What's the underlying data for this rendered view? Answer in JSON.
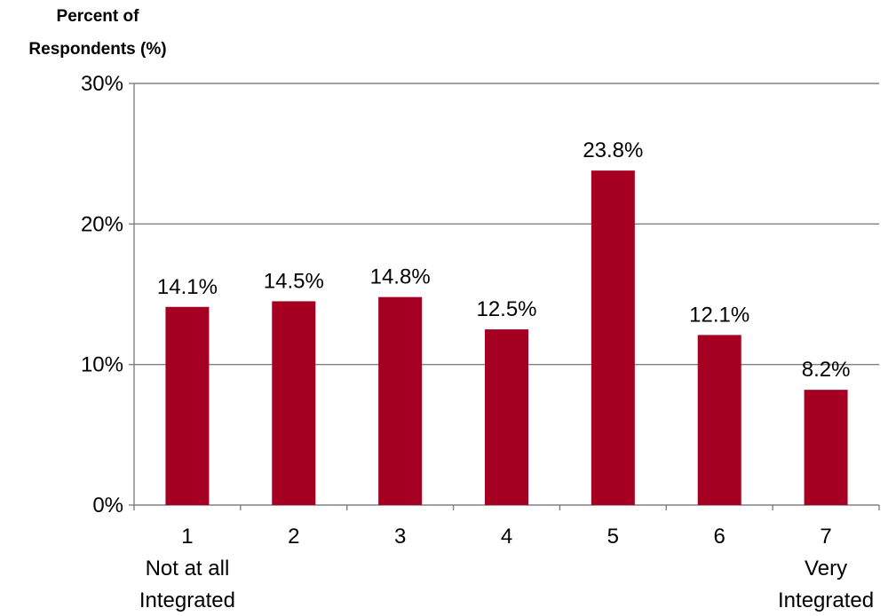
{
  "chart_data": {
    "type": "bar",
    "title": "",
    "ylabel_lines": [
      "Percent of",
      "Respondents (%)"
    ],
    "xlabel": "",
    "categories": [
      "1",
      "2",
      "3",
      "4",
      "5",
      "6",
      "7"
    ],
    "category_sublabels": [
      [
        "Not at all",
        "Integrated"
      ],
      [],
      [],
      [],
      [],
      [],
      [
        "Very",
        "Integrated"
      ]
    ],
    "values": [
      14.1,
      14.5,
      14.8,
      12.5,
      23.8,
      12.1,
      8.2
    ],
    "value_labels": [
      "14.1%",
      "14.5%",
      "14.8%",
      "12.5%",
      "23.8%",
      "12.1%",
      "8.2%"
    ],
    "y_ticks": [
      0,
      10,
      20,
      30
    ],
    "y_tick_labels": [
      "0%",
      "10%",
      "20%",
      "30%"
    ],
    "ylim": [
      0,
      30
    ],
    "grid": true,
    "legend": "none",
    "bar_color": "#A50021",
    "grid_color": "#808080"
  }
}
